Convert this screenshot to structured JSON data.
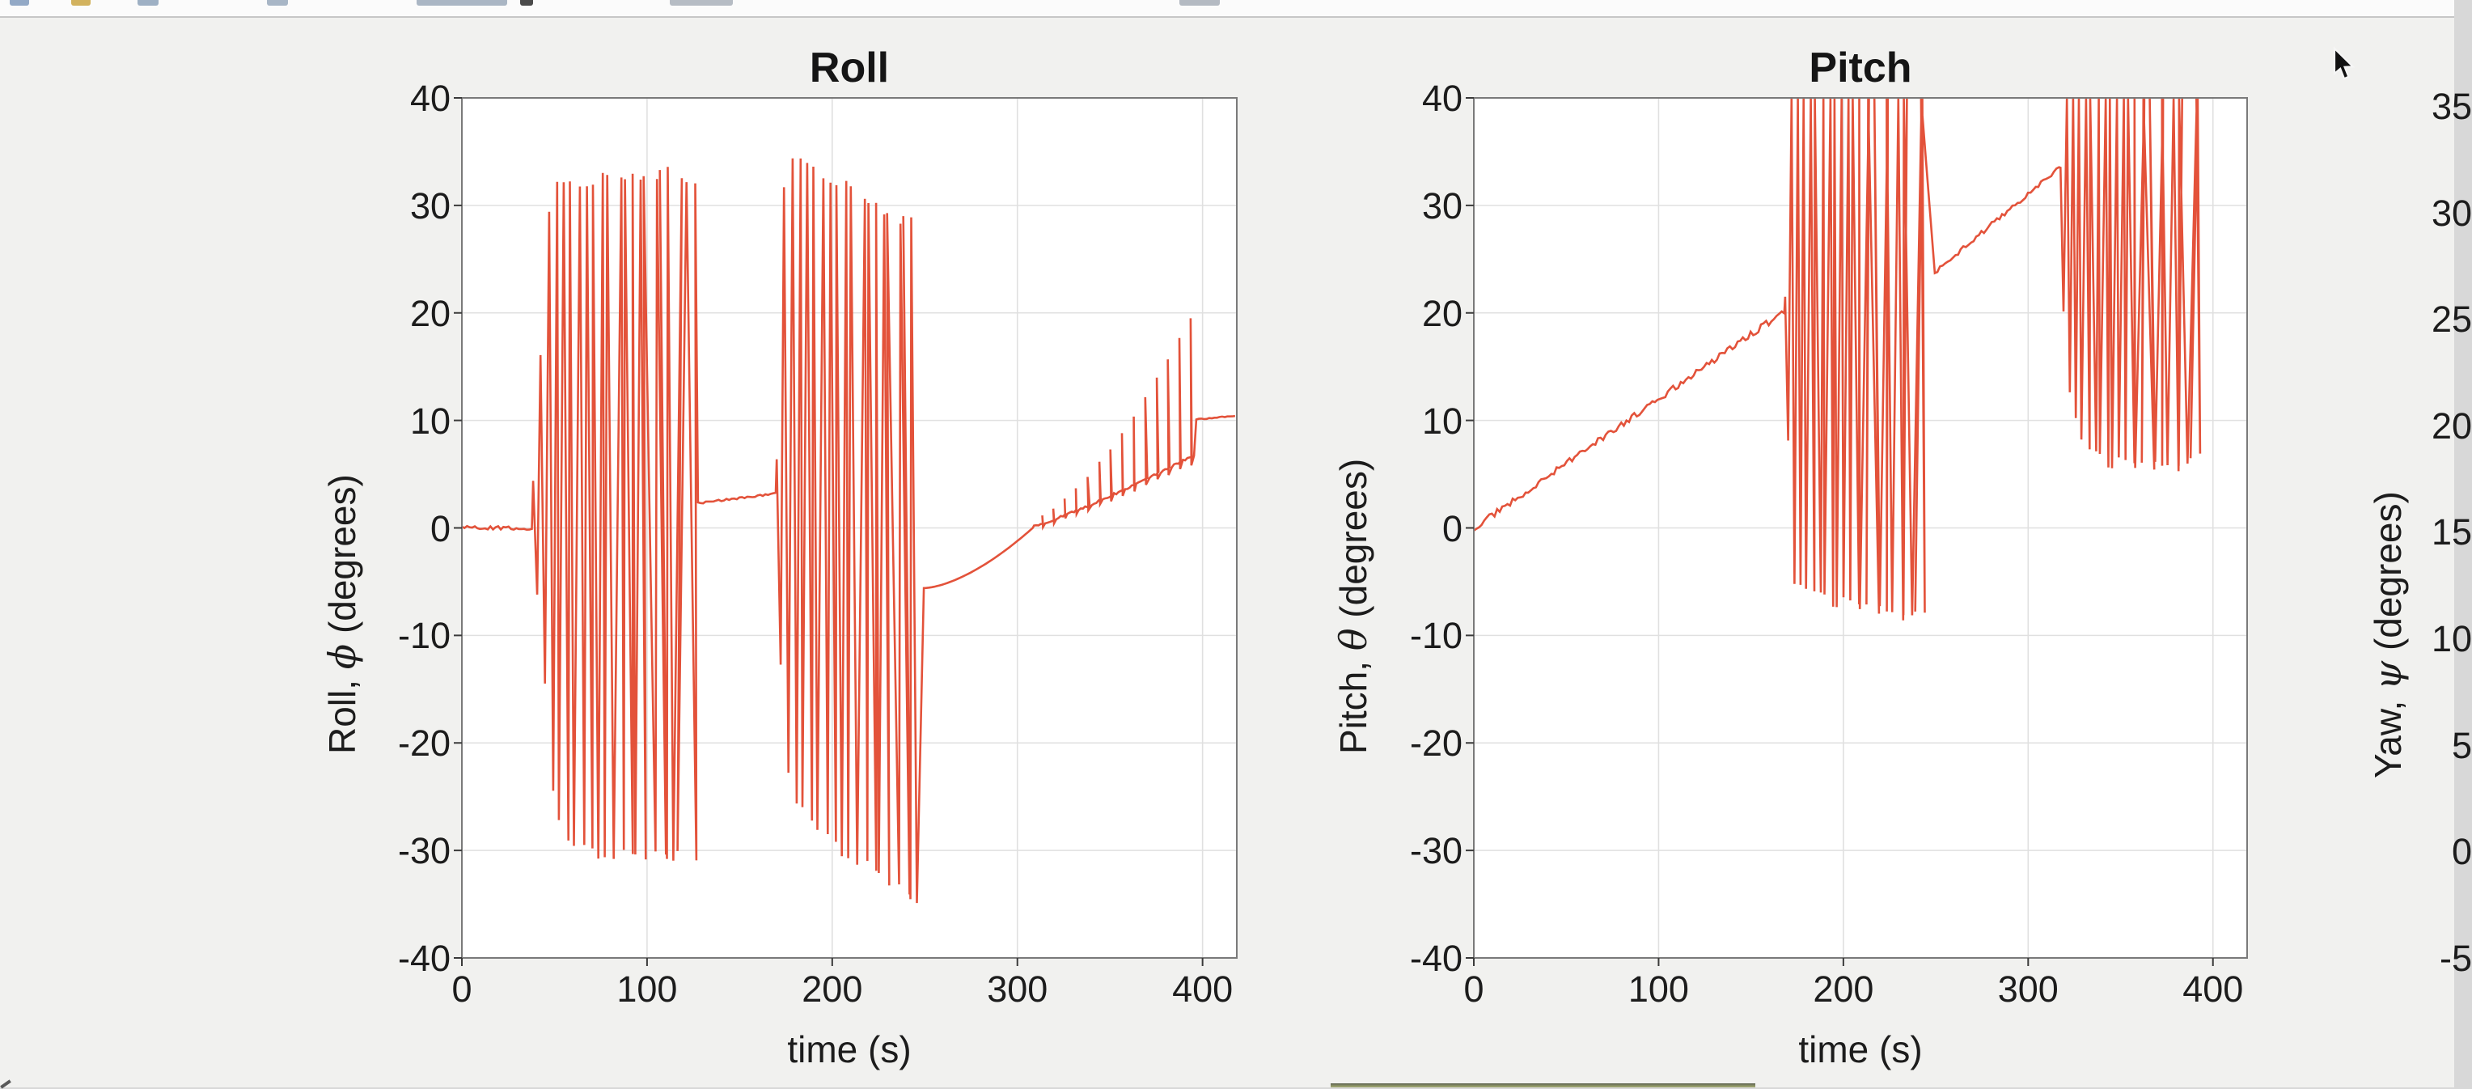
{
  "toolbar": {
    "icons": [
      {
        "name": "toolbar-icon-sliver",
        "x": 12,
        "w": 24,
        "color": "#93a9c6"
      },
      {
        "name": "toolbar-icon-sliver",
        "x": 88,
        "w": 24,
        "color": "#d2b25e"
      },
      {
        "name": "toolbar-icon-sliver",
        "x": 170,
        "w": 26,
        "color": "#9eb0c4"
      },
      {
        "name": "toolbar-icon-sliver",
        "x": 330,
        "w": 26,
        "color": "#a8b6c6"
      },
      {
        "name": "toolbar-icon-sliver",
        "x": 515,
        "w": 112,
        "color": "#aab6c4"
      },
      {
        "name": "toolbar-icon-sliver",
        "x": 643,
        "w": 16,
        "color": "#4a4a4a"
      },
      {
        "name": "toolbar-icon-sliver",
        "x": 828,
        "w": 78,
        "color": "#b6bcc4"
      },
      {
        "name": "toolbar-icon-sliver",
        "x": 1458,
        "w": 50,
        "color": "#b4bac2"
      }
    ]
  },
  "colors": {
    "line": "#e1492f",
    "figure_bg": "#f1f1ef",
    "plot_bg": "#ffffff",
    "grid": "#e0e0e0",
    "box": "#7a7a7a",
    "tick": "#3a3a3a",
    "text": "#1c1c1c"
  },
  "chart_data": [
    {
      "id": "roll",
      "type": "line",
      "title": "Roll",
      "xlabel": "time (s)",
      "ylabel_prefix": "Roll, ",
      "ylabel_symbol": "ϕ",
      "ylabel_suffix": " (degrees)",
      "xlim": [
        0,
        418.5
      ],
      "ylim": [
        -40,
        40
      ],
      "xticks": [
        0,
        100,
        200,
        300,
        400
      ],
      "yticks": [
        40,
        30,
        20,
        10,
        0,
        -10,
        -20,
        -30,
        -40
      ],
      "grid": true,
      "legend": null,
      "segments": [
        {
          "type": "flat",
          "t": [
            0,
            38
          ],
          "y": 0,
          "noise": 0.18
        },
        {
          "type": "burst",
          "t": [
            38.5,
            127.5
          ],
          "period": 4.15,
          "top": [
            [
              38.5,
              4
            ],
            [
              41,
              7
            ],
            [
              44,
              25
            ],
            [
              49,
              31.5
            ],
            [
              60,
              32
            ],
            [
              80,
              32.6
            ],
            [
              100,
              33
            ],
            [
              115,
              33
            ],
            [
              126,
              32.3
            ]
          ],
          "bottom": [
            [
              38.5,
              -2
            ],
            [
              42,
              -8
            ],
            [
              45,
              -15
            ],
            [
              50,
              -26
            ],
            [
              55,
              -29.5
            ],
            [
              70,
              -30.2
            ],
            [
              90,
              -30.4
            ],
            [
              110,
              -30.2
            ],
            [
              126,
              -31
            ]
          ]
        },
        {
          "type": "ramp",
          "t": [
            127.5,
            170
          ],
          "y": [
            2.3,
            3.2
          ],
          "noise": 0.08
        },
        {
          "type": "burst",
          "t": [
            170,
            249.5
          ],
          "period": 4.15,
          "top": [
            [
              170,
              6
            ],
            [
              173,
              30
            ],
            [
              176,
              34.2
            ],
            [
              186,
              33.6
            ],
            [
              200,
              32.5
            ],
            [
              215,
              31
            ],
            [
              230,
              29.5
            ],
            [
              248,
              27.8
            ]
          ],
          "bottom": [
            [
              170,
              -3
            ],
            [
              174,
              -20
            ],
            [
              178,
              -25
            ],
            [
              190,
              -28
            ],
            [
              205,
              -30
            ],
            [
              220,
              -31.5
            ],
            [
              235,
              -33.2
            ],
            [
              248,
              -34.6
            ]
          ]
        },
        {
          "type": "curve",
          "t": [
            249.5,
            309
          ],
          "y": [
            -5.6,
            0.1
          ],
          "power": 1.6
        },
        {
          "type": "spikes",
          "t": [
            309,
            396
          ],
          "base": [
            0.2,
            6.8
          ],
          "peak": [
            0.7,
            13.5
          ],
          "period": 6.3,
          "dip": 0.9
        },
        {
          "type": "ramp",
          "t": [
            396.6,
            418.5
          ],
          "y": [
            10.1,
            10.45
          ],
          "noise": 0.05
        }
      ]
    },
    {
      "id": "pitch",
      "type": "line",
      "title": "Pitch",
      "xlabel": "time (s)",
      "ylabel_prefix": "Pitch, ",
      "ylabel_symbol": "θ",
      "ylabel_suffix": " (degrees)",
      "xlim": [
        0,
        418.5
      ],
      "ylim": [
        -40,
        40
      ],
      "xticks": [
        0,
        100,
        200,
        300,
        400
      ],
      "yticks": [
        40,
        30,
        20,
        10,
        0,
        -10,
        -20,
        -30,
        -40
      ],
      "grid": true,
      "legend": null,
      "segments": [
        {
          "type": "ramp",
          "t": [
            0,
            168.5
          ],
          "y": [
            0,
            20.2
          ],
          "noise": 0.3
        },
        {
          "type": "burst",
          "t": [
            168.5,
            249
          ],
          "period": 3.35,
          "top": [
            [
              168.5,
              22
            ],
            [
              170,
              24
            ],
            [
              172,
              41.8
            ],
            [
              249,
              41.8
            ]
          ],
          "bottom": [
            [
              168.5,
              14
            ],
            [
              171,
              5
            ],
            [
              173.5,
              -5.5
            ],
            [
              185,
              -6.3
            ],
            [
              200,
              -7
            ],
            [
              220,
              -7.8
            ],
            [
              240,
              -8.3
            ],
            [
              248,
              -8.6
            ]
          ]
        },
        {
          "type": "ramp",
          "t": [
            249.5,
            317.5
          ],
          "y": [
            23.8,
            33.6
          ],
          "noise": 0.22
        },
        {
          "type": "burst",
          "t": [
            317.5,
            398
          ],
          "period": 3.35,
          "top": [
            [
              317.5,
              34
            ],
            [
              319,
              36.5
            ],
            [
              321.5,
              41.8
            ],
            [
              397,
              41.8
            ]
          ],
          "bottom": [
            [
              317.5,
              26
            ],
            [
              320,
              17
            ],
            [
              323,
              11.5
            ],
            [
              330,
              7.2
            ],
            [
              345,
              6.1
            ],
            [
              365,
              5.6
            ],
            [
              385,
              5.8
            ],
            [
              397,
              6.6
            ]
          ]
        }
      ]
    },
    {
      "id": "yaw",
      "type": "line",
      "title": "",
      "ylabel_prefix": "Yaw, ",
      "ylabel_symbol": "ψ",
      "ylabel_suffix": " (degrees)",
      "yticks": [
        35,
        30,
        25,
        20,
        15,
        10,
        5,
        0,
        -5
      ]
    }
  ]
}
